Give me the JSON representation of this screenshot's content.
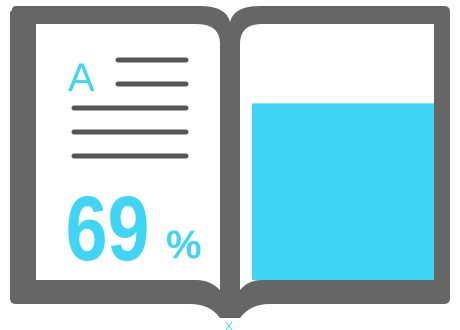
{
  "book_icon": {
    "letter": "A",
    "percent_value": "69",
    "percent_sign": "%",
    "fill_fraction": 0.69
  },
  "colors": {
    "frame": "#666666",
    "page": "#ffffff",
    "accent": "#3fd6f5",
    "text_lines": "#555555"
  },
  "icons": [
    "book-icon",
    "text-lines-icon"
  ]
}
